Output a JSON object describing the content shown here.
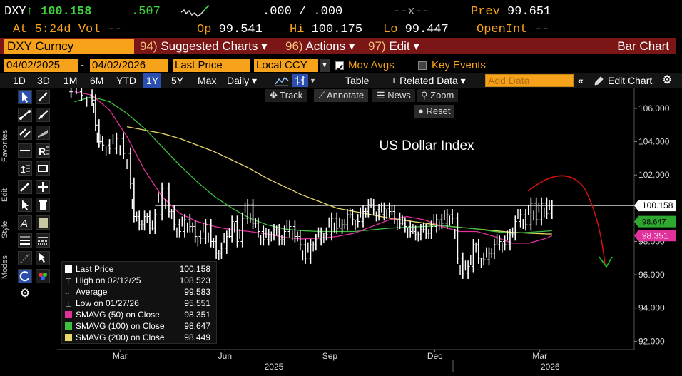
{
  "header": {
    "ticker": "DXY",
    "arrow": "↑",
    "last": "100.158",
    "change": ".507",
    "bidask": ".000 / .000",
    "size": "--x--",
    "prev_label": "Prev",
    "prev": "99.651",
    "at_label": "At",
    "time": "5:24d",
    "vol_label": "Vol",
    "vol": "--",
    "op_label": "Op",
    "op": "99.541",
    "hi_label": "Hi",
    "hi": "100.175",
    "lo_label": "Lo",
    "lo": "99.447",
    "oi_label": "OpenInt",
    "oi": "--"
  },
  "menu": {
    "security": "DXY Curncy",
    "suggested_num": "94)",
    "suggested": "Suggested Charts ▾",
    "actions_num": "96)",
    "actions": "Actions ▾",
    "edit_num": "97)",
    "edit": "Edit ▾",
    "chart_type": "Bar Chart"
  },
  "controls": {
    "start_date": "04/02/2025",
    "sep": "-",
    "end_date": "04/02/2026",
    "field": "Last Price",
    "currency": "Local CCY",
    "mov_avgs": "Mov Avgs",
    "key_events": "Key Events"
  },
  "ranges": {
    "items": [
      "1D",
      "3D",
      "1M",
      "6M",
      "YTD",
      "1Y",
      "5Y",
      "Max"
    ],
    "selected": "1Y",
    "period": "Daily ▾",
    "table": "Table",
    "related": "+ Related Data ▾",
    "add_placeholder": "Add Data",
    "edit_chart": "Edit Chart"
  },
  "tools": {
    "track": "Track",
    "annotate": "Annotate",
    "news": "News",
    "zoom": "Zoom",
    "reset": "Reset"
  },
  "side_labels": {
    "favorites": "Favorites",
    "edit": "Edit",
    "style": "Style",
    "modes": "Modes"
  },
  "legend": {
    "last_price": {
      "label": "Last Price",
      "value": "100.158"
    },
    "high": {
      "label": "High on 02/12/25",
      "value": "108.523"
    },
    "average": {
      "label": "Average",
      "value": "99.583"
    },
    "low": {
      "label": "Low on 01/27/26",
      "value": "95.551"
    },
    "sma50": {
      "label": "SMAVG (50)  on Close",
      "value": "98.351"
    },
    "sma100": {
      "label": "SMAVG (100)  on Close",
      "value": "98.647"
    },
    "sma200": {
      "label": "SMAVG (200)  on Close",
      "value": "98.449"
    }
  },
  "chart_data": {
    "type": "line",
    "title": "US Dollar Index",
    "ylim": [
      91.5,
      107.2
    ],
    "y_ticks": [
      92,
      94,
      96,
      98,
      100,
      102,
      104,
      106
    ],
    "y_tick_labels": [
      "92.000",
      "94.000",
      "96.000",
      "98.000",
      "100.000",
      "102.000",
      "104.000",
      "106.000"
    ],
    "x_month_labels": [
      "Mar",
      "Jun",
      "Sep",
      "Dec",
      "Mar"
    ],
    "x_month_index": [
      1.8,
      4.8,
      7.8,
      10.8,
      13.8
    ],
    "x_year_labels": [
      "2025",
      "2026"
    ],
    "x_year_index": [
      6.2,
      14.1
    ],
    "xlim": [
      0,
      16.5
    ],
    "last_label": "100.158",
    "sma50_label": "98.351",
    "sma100_label": "98.647",
    "grid": false,
    "colors": {
      "price": "#ffffff",
      "sma50": "#e0309a",
      "sma100": "#3fbf3f",
      "sma200": "#e8d96a",
      "annotation": "#d01010",
      "annotation_arrow": "#22c022",
      "last_tag": "#ffffff",
      "sma50_tag": "#e0309a",
      "sma100_tag": "#2fa82f"
    },
    "series": [
      {
        "name": "Last Price",
        "x": [
          0.4,
          0.7,
          1.0,
          1.1,
          1.2,
          1.3,
          1.5,
          1.7,
          1.9,
          2.1,
          2.2,
          2.35,
          2.5,
          2.65,
          2.8,
          3.0,
          3.2,
          3.35,
          3.5,
          3.65,
          3.8,
          3.95,
          4.1,
          4.25,
          4.4,
          4.55,
          4.7,
          4.85,
          5.0,
          5.15,
          5.3,
          5.45,
          5.6,
          5.75,
          5.9,
          6.05,
          6.2,
          6.35,
          6.5,
          6.65,
          6.8,
          6.95,
          7.1,
          7.25,
          7.4,
          7.55,
          7.7,
          7.85,
          8.0,
          8.15,
          8.3,
          8.45,
          8.6,
          8.75,
          8.9,
          9.05,
          9.2,
          9.35,
          9.5,
          9.65,
          9.8,
          9.95,
          10.1,
          10.25,
          10.4,
          10.55,
          10.7,
          10.85,
          11.0,
          11.15,
          11.3,
          11.45,
          11.6,
          11.75,
          11.9,
          12.05,
          12.2,
          12.35,
          12.5,
          12.65,
          12.8,
          12.95,
          13.1,
          13.25,
          13.4,
          13.55,
          13.7,
          13.85,
          14.0,
          14.15
        ],
        "y": [
          107.0,
          106.8,
          106.5,
          105.0,
          104.0,
          103.8,
          103.6,
          104.2,
          103.3,
          101.5,
          99.5,
          99.0,
          99.5,
          98.8,
          99.6,
          101.2,
          99.8,
          99.0,
          98.6,
          99.3,
          98.9,
          98.3,
          98.2,
          99.0,
          98.0,
          97.3,
          97.6,
          98.3,
          99.2,
          98.0,
          99.4,
          100.2,
          99.1,
          98.6,
          98.1,
          98.4,
          98.7,
          98.1,
          98.6,
          98.9,
          98.3,
          97.8,
          97.0,
          97.8,
          98.1,
          98.5,
          98.4,
          99.4,
          98.8,
          99.0,
          99.6,
          99.3,
          99.2,
          99.8,
          100.2,
          99.9,
          99.6,
          100.0,
          99.8,
          99.4,
          99.1,
          98.9,
          98.6,
          98.4,
          98.7,
          98.5,
          98.9,
          99.3,
          99.1,
          99.6,
          99.4,
          97.0,
          96.1,
          96.5,
          97.8,
          97.0,
          96.9,
          97.3,
          97.8,
          98.0,
          97.8,
          98.4,
          99.2,
          99.6,
          99.0,
          100.3,
          99.3,
          100.3,
          99.7,
          100.158
        ]
      },
      {
        "name": "SMAVG (50)",
        "x": [
          0.5,
          1.0,
          1.5,
          2.0,
          2.5,
          3.0,
          3.5,
          4.0,
          4.5,
          5.0,
          5.5,
          6.0,
          6.5,
          7.0,
          7.5,
          8.0,
          8.5,
          9.0,
          9.5,
          10.0,
          10.5,
          11.0,
          11.5,
          12.0,
          12.5,
          13.0,
          13.5,
          14.0,
          14.15
        ],
        "y": [
          107.0,
          106.8,
          105.9,
          104.3,
          102.3,
          100.7,
          99.7,
          99.2,
          98.9,
          98.7,
          98.6,
          98.45,
          98.25,
          98.15,
          98.2,
          98.3,
          98.5,
          98.9,
          99.3,
          99.5,
          99.3,
          98.9,
          98.6,
          98.6,
          98.3,
          97.9,
          97.9,
          98.2,
          98.35
        ]
      },
      {
        "name": "SMAVG (100)",
        "x": [
          0.5,
          1.0,
          1.5,
          2.0,
          2.5,
          3.0,
          3.5,
          4.0,
          4.5,
          5.0,
          5.5,
          6.0,
          6.5,
          7.0,
          7.5,
          8.0,
          8.5,
          9.0,
          9.5,
          10.0,
          10.5,
          11.0,
          11.5,
          12.0,
          12.5,
          13.0,
          13.5,
          14.0,
          14.15
        ],
        "y": [
          106.4,
          106.7,
          106.4,
          105.7,
          104.8,
          103.7,
          102.6,
          101.6,
          100.7,
          100.0,
          99.4,
          99.0,
          98.75,
          98.65,
          98.6,
          98.6,
          98.6,
          98.7,
          98.8,
          98.85,
          98.9,
          98.95,
          98.85,
          98.75,
          98.6,
          98.5,
          98.55,
          98.62,
          98.65
        ]
      },
      {
        "name": "SMAVG (200)",
        "x": [
          2.0,
          2.5,
          3.0,
          3.5,
          4.0,
          4.5,
          5.0,
          5.5,
          6.0,
          6.5,
          7.0,
          7.5,
          8.0,
          8.5,
          9.0,
          9.5,
          10.0,
          10.5,
          11.0,
          11.5,
          12.0,
          12.5,
          13.0,
          13.5,
          14.0,
          14.15
        ],
        "y": [
          104.9,
          104.7,
          104.5,
          104.2,
          103.8,
          103.4,
          102.9,
          102.4,
          101.8,
          101.3,
          100.8,
          100.4,
          100.0,
          99.8,
          99.6,
          99.4,
          99.25,
          99.1,
          98.95,
          98.85,
          98.75,
          98.65,
          98.55,
          98.5,
          98.45,
          98.45
        ]
      }
    ]
  }
}
